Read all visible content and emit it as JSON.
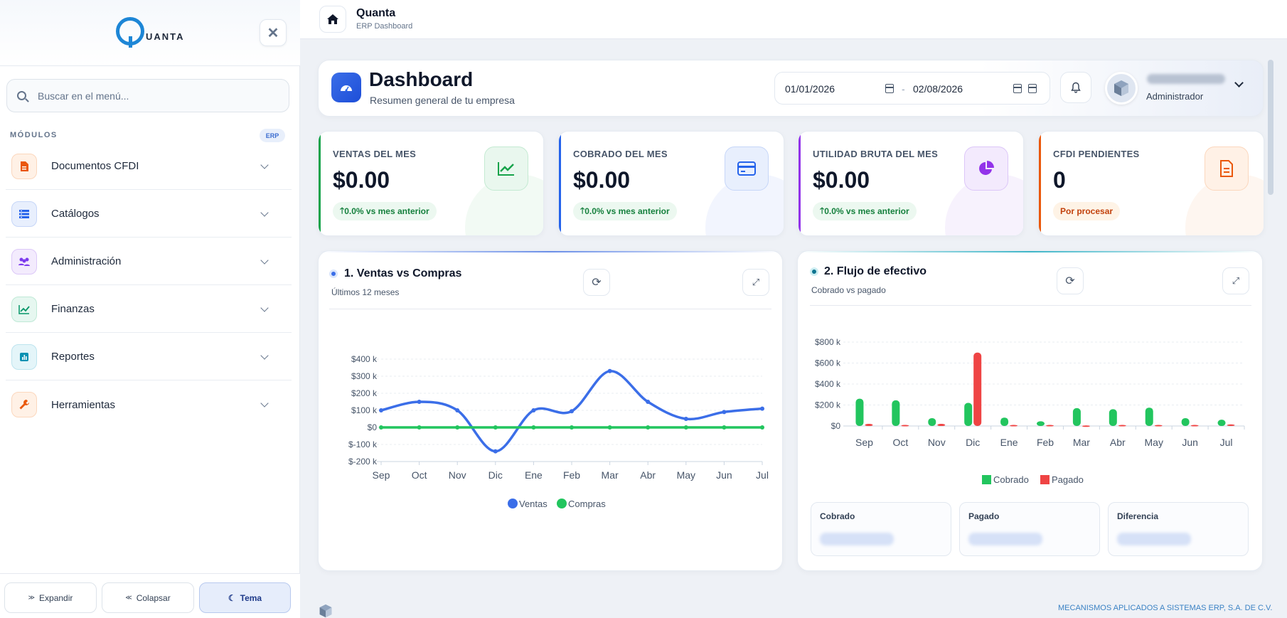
{
  "sidebar": {
    "logo_text": "UANTA",
    "search_placeholder": "Buscar en el menú...",
    "section_label": "MÓDULOS",
    "section_badge": "ERP",
    "items": [
      {
        "label": "Documentos CFDI",
        "icon": "document-icon",
        "color": "#ea580c"
      },
      {
        "label": "Catálogos",
        "icon": "list-icon",
        "color": "#2563eb"
      },
      {
        "label": "Administración",
        "icon": "users-icon",
        "color": "#7c3aed"
      },
      {
        "label": "Finanzas",
        "icon": "chart-line-icon",
        "color": "#059669"
      },
      {
        "label": "Reportes",
        "icon": "report-icon",
        "color": "#0891b2"
      },
      {
        "label": "Herramientas",
        "icon": "wrench-icon",
        "color": "#ea580c"
      }
    ],
    "footer": {
      "expand": "Expandir",
      "collapse": "Colapsar",
      "theme": "Tema"
    }
  },
  "topbar": {
    "title": "Quanta",
    "subtitle": "ERP Dashboard"
  },
  "header": {
    "title": "Dashboard",
    "subtitle": "Resumen general de tu empresa",
    "date_from": "01/01/2026",
    "date_sep": "-",
    "date_to": "02/08/2026",
    "user_role": "Administrador"
  },
  "kpis": [
    {
      "label": "VENTAS DEL MES",
      "value": "$0.00",
      "badge": "0.0% vs mes anterior",
      "badge_arrow": "🡑",
      "color": "#16a34a"
    },
    {
      "label": "COBRADO DEL MES",
      "value": "$0.00",
      "badge": "0.0% vs mes anterior",
      "badge_arrow": "🡑",
      "color": "#2563eb"
    },
    {
      "label": "UTILIDAD BRUTA DEL MES",
      "value": "$0.00",
      "badge": "0.0% vs mes anterior",
      "badge_arrow": "🡑",
      "color": "#9333ea"
    },
    {
      "label": "CFDI PENDIENTES",
      "value": "0",
      "badge": "Por procesar",
      "badge_arrow": "",
      "color": "#ea580c"
    }
  ],
  "card1": {
    "title": "1. Ventas vs Compras",
    "subtitle": "Últimos 12 meses"
  },
  "card2": {
    "title": "2. Flujo de efectivo",
    "subtitle": "Cobrado vs pagado"
  },
  "stats": {
    "cobrado": "Cobrado",
    "pagado": "Pagado",
    "diferencia": "Diferencia"
  },
  "footer": {
    "company": "MECANISMOS APLICADOS A SISTEMAS ERP, S.A. DE C.V."
  },
  "chart_data": [
    {
      "type": "line",
      "categories": [
        "Sep",
        "Oct",
        "Nov",
        "Dic",
        "Ene",
        "Feb",
        "Mar",
        "Abr",
        "May",
        "Jun",
        "Jul"
      ],
      "ylim": [
        -200000,
        400000
      ],
      "ytick_labels": [
        "$400 k",
        "$300 k",
        "$200 k",
        "$100 k",
        "$0",
        "$-100 k",
        "$-200 k"
      ],
      "series": [
        {
          "name": "Ventas",
          "color": "#3b6ee8",
          "values": [
            100000,
            150000,
            100000,
            -140000,
            100000,
            95000,
            330000,
            150000,
            50000,
            90000,
            110000
          ]
        },
        {
          "name": "Compras",
          "color": "#22c55e",
          "values": [
            0,
            0,
            0,
            0,
            0,
            0,
            0,
            0,
            0,
            0,
            0
          ]
        }
      ],
      "grid": true,
      "legend": "bottom"
    },
    {
      "type": "bar",
      "categories": [
        "Sep",
        "Oct",
        "Nov",
        "Dic",
        "Ene",
        "Feb",
        "Mar",
        "Abr",
        "May",
        "Jun",
        "Jul"
      ],
      "ylim": [
        0,
        800000
      ],
      "ytick_labels": [
        "$800 k",
        "$600 k",
        "$400 k",
        "$200 k",
        "$0"
      ],
      "series": [
        {
          "name": "Cobrado",
          "color": "#22c55e",
          "values": [
            260000,
            245000,
            75000,
            220000,
            80000,
            45000,
            170000,
            160000,
            175000,
            75000,
            60000
          ]
        },
        {
          "name": "Pagado",
          "color": "#ef4444",
          "values": [
            20000,
            10000,
            20000,
            700000,
            10000,
            10000,
            5000,
            10000,
            10000,
            10000,
            15000
          ]
        }
      ],
      "grid": true,
      "legend": "bottom"
    }
  ]
}
